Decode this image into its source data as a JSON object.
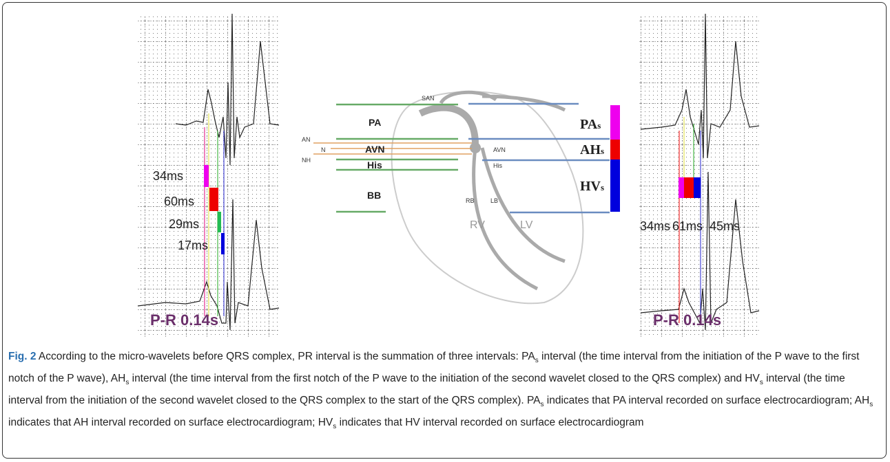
{
  "left_panel": {
    "intervals": [
      "34ms",
      "60ms",
      "29ms",
      "17ms"
    ],
    "pr": "P-R 0.14s"
  },
  "diagram": {
    "san": "SAN",
    "pa": "PA",
    "an": "AN",
    "n": "N",
    "nh": "NH",
    "avn": "AVN",
    "his": "His",
    "bb": "BB",
    "avn_small": "AVN",
    "his_small": "His",
    "rb": "RB",
    "lb": "LB",
    "rv": "RV",
    "lv": "LV",
    "pas": {
      "main": "PA",
      "sub": "s"
    },
    "ahs": {
      "main": "AH",
      "sub": "s"
    },
    "hvs": {
      "main": "HV",
      "sub": "s"
    }
  },
  "right_panel": {
    "intervals": [
      "34ms",
      "61ms",
      "45ms"
    ],
    "pr": "P-R 0.14s"
  },
  "caption": {
    "label": "Fig. 2",
    "parts": [
      " According to the micro-wavelets before QRS complex, PR interval is the summation of three intervals: PA",
      "s",
      " interval (the time interval from the initiation of the P wave to the first notch of the P wave), AH",
      "s",
      " interval (the time interval from the first notch of the P wave to the initiation of the second wavelet closed to the QRS complex) and HV",
      "s",
      " interval (the time interval from the initiation of the second wavelet closed to the QRS complex to the start of the QRS complex). PA",
      "s",
      " indicates that PA interval recorded on surface electrocardiogram; AH",
      "s",
      " indicates that AH interval recorded on surface electrocardiogram; HV",
      "s",
      " indicates that HV interval recorded on surface electrocardiogram"
    ]
  }
}
